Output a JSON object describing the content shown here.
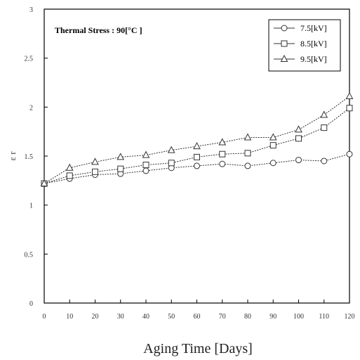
{
  "chart_data": {
    "type": "line",
    "title": "",
    "annotation": "Thermal Stress : 90[°C ]",
    "xlabel": "Aging Time [Days]",
    "ylabel": "ε r",
    "xlim": [
      0,
      120
    ],
    "ylim": [
      0,
      3
    ],
    "x": [
      0,
      10,
      20,
      30,
      40,
      50,
      60,
      70,
      80,
      90,
      100,
      110,
      120
    ],
    "x_tick_labels": [
      "0",
      "10",
      "20",
      "30",
      "40",
      "50",
      "60",
      "70",
      "80",
      "90",
      "100",
      "110",
      "120"
    ],
    "y_ticks": [
      0,
      0.5,
      1,
      1.5,
      2,
      2.5,
      3
    ],
    "y_tick_labels": [
      "0",
      "0.5",
      "1",
      "1.5",
      "2",
      "2.5",
      "3"
    ],
    "legend_position": "top-right",
    "series": [
      {
        "name": "7.5[kV]",
        "marker": "circle",
        "values": [
          1.22,
          1.27,
          1.31,
          1.32,
          1.35,
          1.38,
          1.4,
          1.42,
          1.4,
          1.43,
          1.46,
          1.45,
          1.52
        ]
      },
      {
        "name": "8.5[kV]",
        "marker": "square",
        "values": [
          1.22,
          1.3,
          1.34,
          1.37,
          1.41,
          1.43,
          1.49,
          1.52,
          1.53,
          1.61,
          1.68,
          1.79,
          1.99
        ]
      },
      {
        "name": "9.5[kV]",
        "marker": "triangle",
        "values": [
          1.22,
          1.38,
          1.44,
          1.49,
          1.51,
          1.56,
          1.6,
          1.64,
          1.69,
          1.69,
          1.77,
          1.92,
          2.11
        ]
      }
    ],
    "colors": {
      "line": "#333333",
      "frame": "#000000"
    }
  }
}
